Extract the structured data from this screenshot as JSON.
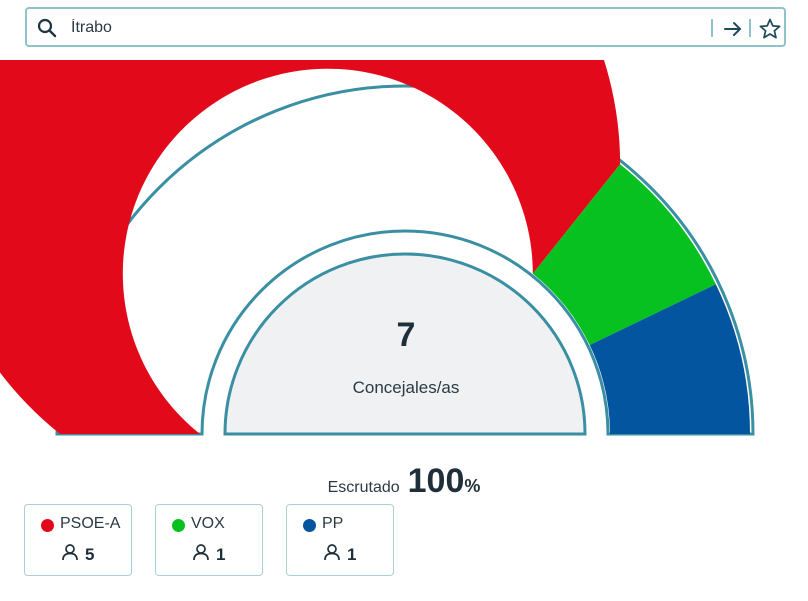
{
  "search": {
    "value": "Ítrabo"
  },
  "icons": {
    "search": "search-icon",
    "go": "arrow-right-icon",
    "favorite": "star-icon",
    "person": "person-icon"
  },
  "chart_data": {
    "type": "hemicycle",
    "total_seats": 7,
    "center_value": "7",
    "center_label": "Concejales/as",
    "series": [
      {
        "name": "PSOE-A",
        "values": [
          5
        ],
        "color": "#e20a1a"
      },
      {
        "name": "VOX",
        "values": [
          1
        ],
        "color": "#06c120"
      },
      {
        "name": "PP",
        "values": [
          1
        ],
        "color": "#0455a0"
      }
    ]
  },
  "scrutiny": {
    "label": "Escrutado",
    "value": "100",
    "unit": "%"
  },
  "parties": [
    {
      "name": "PSOE-A",
      "seats": "5",
      "color": "#e20a1a"
    },
    {
      "name": "VOX",
      "seats": "1",
      "color": "#06c120"
    },
    {
      "name": "PP",
      "seats": "1",
      "color": "#0455a0"
    }
  ],
  "colors": {
    "border": "#3a8fa3",
    "inner_fill": "#eff1f3",
    "accent_light": "#8fc3cc"
  }
}
